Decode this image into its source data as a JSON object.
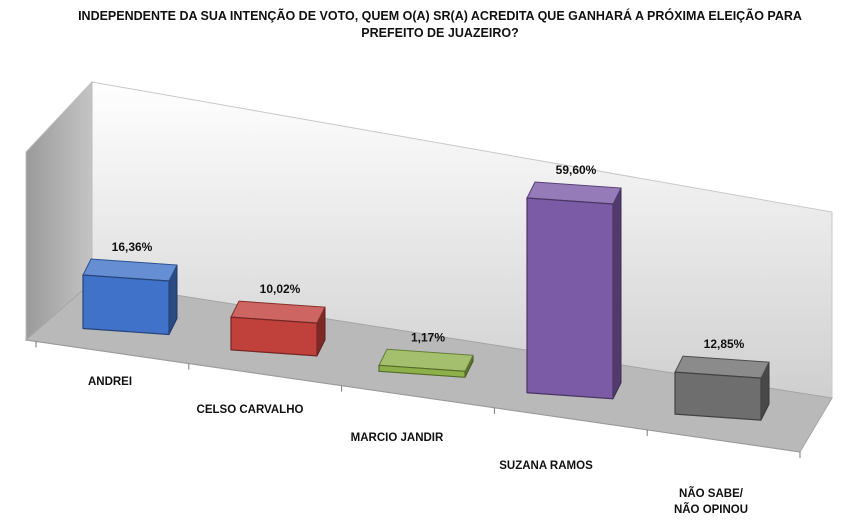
{
  "chart_data": {
    "type": "bar",
    "title": "INDEPENDENTE DA SUA INTENÇÃO DE VOTO, QUEM O(A) SR(A) ACREDITA QUE GANHARÁ A PRÓXIMA ELEIÇÃO PARA PREFEITO DE JUAZEIRO?",
    "categories": [
      "ANDREI",
      "CELSO CARVALHO",
      "MARCIO JANDIR",
      "SUZANA RAMOS",
      "NÃO SABE/NÃO OPINOU"
    ],
    "values": [
      16.36,
      10.02,
      1.17,
      59.6,
      12.85
    ],
    "value_labels": [
      "16,36%",
      "10,02%",
      "1,17%",
      "59,60%",
      "12,85%"
    ],
    "colors": [
      "#3f72c8",
      "#c0403c",
      "#8db04a",
      "#7b5aa6",
      "#6e6e6e"
    ],
    "ylim": [
      0,
      60
    ],
    "grid": false,
    "legend": "none",
    "style": "3d-perspective"
  }
}
